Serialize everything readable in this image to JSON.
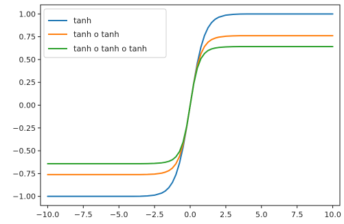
{
  "chart_data": {
    "type": "line",
    "title": "",
    "xlabel": "",
    "ylabel": "",
    "xlim": [
      -10.5,
      10.5
    ],
    "ylim": [
      -1.1,
      1.1
    ],
    "xticks": [
      -10.0,
      -7.5,
      -5.0,
      -2.5,
      0.0,
      2.5,
      5.0,
      7.5,
      10.0
    ],
    "xtick_labels": [
      "−10.0",
      "−7.5",
      "−5.0",
      "−2.5",
      "0.0",
      "2.5",
      "5.0",
      "7.5",
      "10.0"
    ],
    "yticks": [
      1.0,
      0.75,
      0.5,
      0.25,
      0.0,
      -0.25,
      -0.5,
      -0.75,
      -1.0
    ],
    "ytick_labels": [
      "1.00",
      "0.75",
      "0.50",
      "0.25",
      "0.00",
      "−0.25",
      "−0.50",
      "−0.75",
      "−1.00"
    ],
    "grid": false,
    "legend_position": "top-left",
    "x": [
      -10.0,
      -8.0,
      -6.0,
      -5.0,
      -4.0,
      -3.5,
      -3.0,
      -2.5,
      -2.0,
      -1.75,
      -1.5,
      -1.25,
      -1.0,
      -0.75,
      -0.5,
      -0.25,
      0.0,
      0.25,
      0.5,
      0.75,
      1.0,
      1.25,
      1.5,
      1.75,
      2.0,
      2.5,
      3.0,
      3.5,
      4.0,
      5.0,
      6.0,
      8.0,
      10.0
    ],
    "series": [
      {
        "name": "tanh",
        "color": "#1f77b4",
        "values": [
          -1.0,
          -1.0,
          -1.0,
          -0.9999,
          -0.9993,
          -0.9982,
          -0.9951,
          -0.9866,
          -0.964,
          -0.9414,
          -0.9051,
          -0.8483,
          -0.7616,
          -0.6351,
          -0.4621,
          -0.2449,
          0.0,
          0.2449,
          0.4621,
          0.6351,
          0.7616,
          0.8483,
          0.9051,
          0.9414,
          0.964,
          0.9866,
          0.9951,
          0.9982,
          0.9993,
          0.9999,
          1.0,
          1.0,
          1.0
        ]
      },
      {
        "name": "tanh o tanh",
        "color": "#ff7f0e",
        "values": [
          -0.7616,
          -0.7616,
          -0.7616,
          -0.7616,
          -0.7613,
          -0.7608,
          -0.7594,
          -0.7555,
          -0.7452,
          -0.7347,
          -0.7184,
          -0.6902,
          -0.642,
          -0.5617,
          -0.4318,
          -0.2402,
          0.0,
          0.2402,
          0.4318,
          0.5617,
          0.642,
          0.6902,
          0.7184,
          0.7347,
          0.7452,
          0.7555,
          0.7594,
          0.7608,
          0.7613,
          0.7616,
          0.7616,
          0.7616,
          0.7616
        ]
      },
      {
        "name": "tanh o tanh o tanh",
        "color": "#2ca02c",
        "values": [
          -0.642,
          -0.642,
          -0.642,
          -0.642,
          -0.6418,
          -0.6415,
          -0.6407,
          -0.6384,
          -0.6322,
          -0.6259,
          -0.6161,
          -0.5985,
          -0.5658,
          -0.5094,
          -0.4066,
          -0.2357,
          0.0,
          0.2357,
          0.4066,
          0.5094,
          0.5658,
          0.5985,
          0.6161,
          0.6259,
          0.6322,
          0.6384,
          0.6407,
          0.6415,
          0.6418,
          0.642,
          0.642,
          0.642,
          0.642
        ]
      }
    ]
  }
}
